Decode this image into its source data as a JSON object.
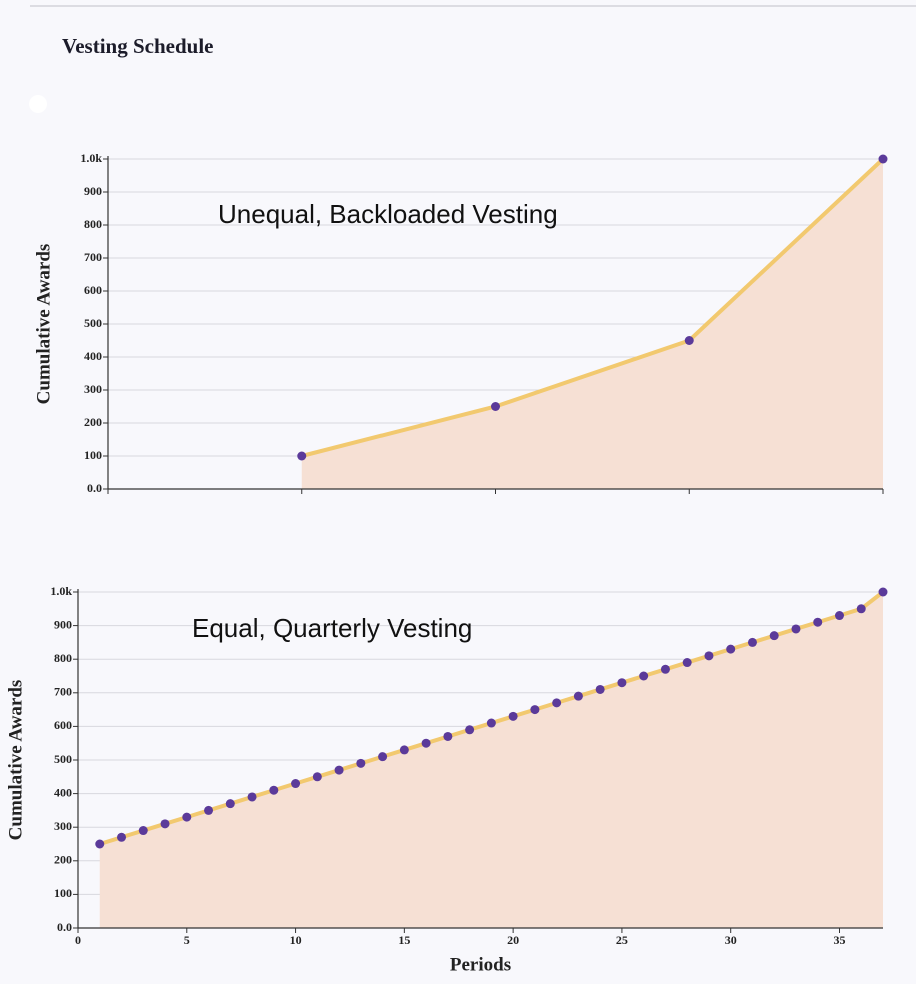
{
  "title": "Vesting Schedule",
  "chart_data": [
    {
      "type": "line",
      "annotation": "Unequal, Backloaded Vesting",
      "ylabel": "Cumulative Awards",
      "x": [
        0,
        1,
        2,
        3,
        4
      ],
      "series": [
        {
          "color": "#f2c96f",
          "values": [
            null,
            100,
            250,
            450,
            1000
          ]
        }
      ],
      "marker_color": "#5b3a9a",
      "area_color": "#f6e0d4",
      "xlim": [
        0,
        4
      ],
      "ylim": [
        0,
        1000
      ],
      "xticks": [
        0,
        1,
        2,
        3,
        4
      ],
      "yticks": [
        {
          "value": 0,
          "label": "0.0"
        },
        100,
        200,
        300,
        400,
        500,
        600,
        700,
        800,
        900,
        {
          "value": 1000,
          "label": "1.0k"
        }
      ],
      "grid": true
    },
    {
      "type": "line",
      "annotation": "Equal, Quarterly Vesting",
      "ylabel": "Cumulative Awards",
      "xlabel": "Periods",
      "x": [
        1,
        2,
        3,
        4,
        5,
        6,
        7,
        8,
        9,
        10,
        11,
        12,
        13,
        14,
        15,
        16,
        17,
        18,
        19,
        20,
        21,
        22,
        23,
        24,
        25,
        26,
        27,
        28,
        29,
        30,
        31,
        32,
        33,
        34,
        35,
        36,
        37
      ],
      "series": [
        {
          "color": "#f2c96f",
          "values": [
            250,
            270,
            290,
            310,
            330,
            350,
            370,
            390,
            410,
            430,
            450,
            470,
            490,
            510,
            530,
            550,
            570,
            590,
            610,
            630,
            650,
            670,
            690,
            710,
            730,
            750,
            770,
            790,
            810,
            830,
            850,
            870,
            890,
            910,
            930,
            950,
            1000
          ]
        }
      ],
      "marker_color": "#5b3a9a",
      "area_color": "#f6e0d4",
      "xlim": [
        0,
        37
      ],
      "ylim": [
        0,
        1000
      ],
      "xticks": [
        0,
        5,
        10,
        15,
        20,
        25,
        30,
        35
      ],
      "yticks": [
        {
          "value": 0,
          "label": "0.0"
        },
        100,
        200,
        300,
        400,
        500,
        600,
        700,
        800,
        900,
        {
          "value": 1000,
          "label": "1.0k"
        }
      ],
      "grid": true
    }
  ]
}
